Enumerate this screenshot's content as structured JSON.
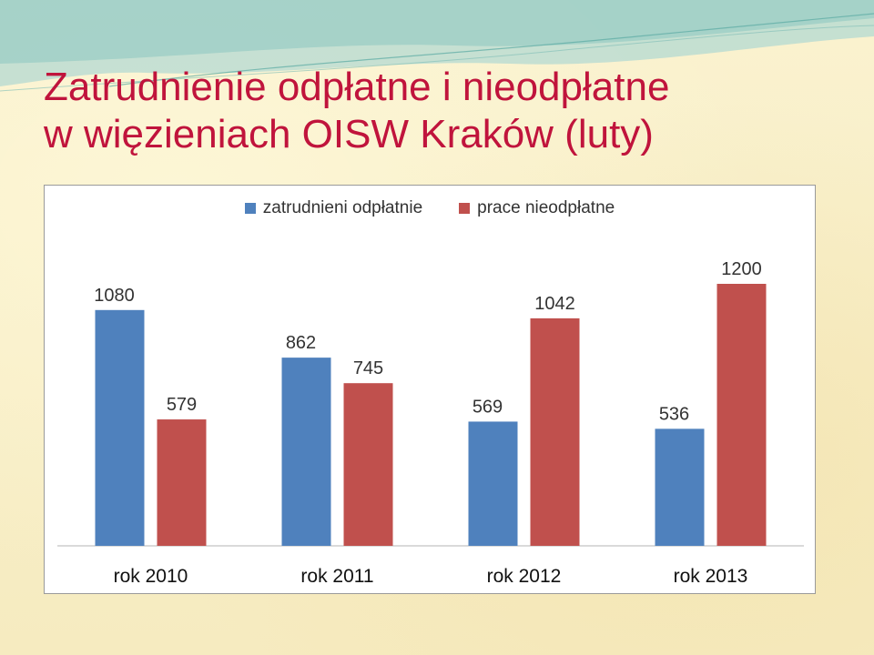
{
  "title": {
    "line1": "Zatrudnienie odpłatne i nieodpłatne",
    "line2": "w więzieniach OISW Kraków (luty)"
  },
  "colors": {
    "title": "#c0143c",
    "series_paid": "#4f81bd",
    "series_unpaid": "#c0504d"
  },
  "chart_data": {
    "type": "bar",
    "categories": [
      "rok 2010",
      "rok 2011",
      "rok 2012",
      "rok 2013"
    ],
    "series": [
      {
        "name": "zatrudnieni odpłatnie",
        "values": [
          1080,
          862,
          569,
          536
        ],
        "color": "#4f81bd"
      },
      {
        "name": "prace nieodpłatne",
        "values": [
          579,
          745,
          1042,
          1200
        ],
        "color": "#c0504d"
      }
    ],
    "ylim": [
      0,
      1200
    ],
    "grid": false,
    "legend": "top-center",
    "data_labels": true
  }
}
